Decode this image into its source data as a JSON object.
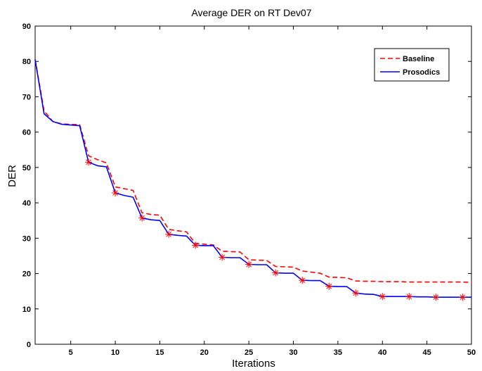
{
  "chart_data": {
    "type": "line",
    "title": "Average DER on RT Dev07",
    "xlabel": "Iterations",
    "ylabel": "DER",
    "xlim": [
      1,
      50
    ],
    "ylim": [
      0,
      90
    ],
    "xticks": [
      5,
      10,
      15,
      20,
      25,
      30,
      35,
      40,
      45,
      50
    ],
    "yticks": [
      0,
      10,
      20,
      30,
      40,
      50,
      60,
      70,
      80,
      90
    ],
    "grid": false,
    "legend_position": "top-right",
    "series": [
      {
        "name": "Baseline",
        "color": "#ff0000",
        "style": "dashed",
        "x": [
          1,
          2,
          3,
          4,
          5,
          6,
          7,
          8,
          9,
          10,
          11,
          12,
          13,
          14,
          15,
          16,
          17,
          18,
          19,
          20,
          21,
          22,
          23,
          24,
          25,
          26,
          27,
          28,
          29,
          30,
          31,
          32,
          33,
          34,
          35,
          36,
          37,
          38,
          39,
          40,
          41,
          42,
          43,
          44,
          45,
          46,
          47,
          48,
          49,
          50
        ],
        "y": [
          80.5,
          66,
          63,
          62.3,
          62.2,
          62.1,
          53.3,
          52.2,
          51.3,
          44.5,
          44.0,
          43.5,
          37.2,
          36.7,
          36.5,
          32.5,
          32.1,
          31.8,
          28.5,
          28.3,
          28.1,
          26.3,
          26.2,
          26.1,
          23.9,
          23.8,
          23.7,
          22.0,
          21.9,
          21.8,
          20.7,
          20.4,
          20.1,
          19.0,
          18.9,
          18.8,
          17.9,
          17.8,
          17.8,
          17.7,
          17.7,
          17.7,
          17.6,
          17.6,
          17.6,
          17.6,
          17.6,
          17.6,
          17.6,
          17.5
        ]
      },
      {
        "name": "Prosodics",
        "color": "#0000ff",
        "style": "solid",
        "x": [
          1,
          2,
          3,
          4,
          5,
          6,
          7,
          8,
          9,
          10,
          11,
          12,
          13,
          14,
          15,
          16,
          17,
          18,
          19,
          20,
          21,
          22,
          23,
          24,
          25,
          26,
          27,
          28,
          29,
          30,
          31,
          32,
          33,
          34,
          35,
          36,
          37,
          38,
          39,
          40,
          41,
          42,
          43,
          44,
          45,
          46,
          47,
          48,
          49,
          50
        ],
        "y": [
          80.5,
          65.2,
          63,
          62.2,
          62,
          61.8,
          51.5,
          50.5,
          50.2,
          42.8,
          42.1,
          41.6,
          35.7,
          35.2,
          35.0,
          31.1,
          30.8,
          30.6,
          28.0,
          27.9,
          27.9,
          24.6,
          24.5,
          24.5,
          22.6,
          22.5,
          22.5,
          20.2,
          20.1,
          20.1,
          18.1,
          18.0,
          18.0,
          16.4,
          16.3,
          16.3,
          14.5,
          14.2,
          14.1,
          13.5,
          13.5,
          13.5,
          13.5,
          13.4,
          13.4,
          13.3,
          13.3,
          13.3,
          13.3,
          13.3
        ]
      }
    ],
    "markers": {
      "color": "#ff0000",
      "symbol": "asterisk",
      "x": [
        7,
        10,
        13,
        16,
        19,
        22,
        25,
        28,
        31,
        34,
        37,
        40,
        43,
        46,
        49
      ],
      "y": [
        51.5,
        42.8,
        35.7,
        31.1,
        28.0,
        24.6,
        22.6,
        20.2,
        18.1,
        16.4,
        14.5,
        13.5,
        13.5,
        13.3,
        13.3
      ]
    }
  }
}
